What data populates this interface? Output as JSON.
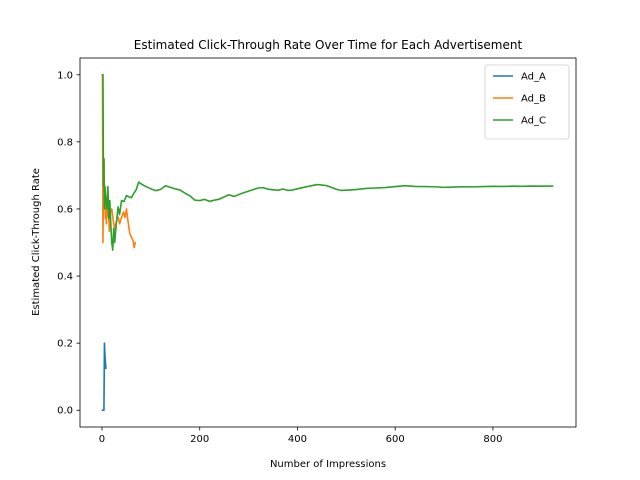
{
  "chart_data": {
    "type": "line",
    "title": "Estimated Click-Through Rate Over Time for Each Advertisement",
    "xlabel": "Number of Impressions",
    "ylabel": "Estimated Click-Through Rate",
    "xlim": [
      -45,
      970
    ],
    "ylim": [
      -0.05,
      1.05
    ],
    "xticks": [
      0,
      200,
      400,
      600,
      800
    ],
    "yticks": [
      0.0,
      0.2,
      0.4,
      0.6,
      0.8,
      1.0
    ],
    "legend_position": "top-right",
    "grid": false,
    "series": [
      {
        "name": "Ad_A",
        "color": "#1f77b4",
        "points": [
          [
            1,
            0.0
          ],
          [
            2,
            0.0
          ],
          [
            3,
            0.0
          ],
          [
            4,
            0.0
          ],
          [
            5,
            0.2
          ],
          [
            6,
            0.1667
          ],
          [
            7,
            0.1429
          ],
          [
            8,
            0.125
          ]
        ]
      },
      {
        "name": "Ad_B",
        "color": "#ff7f0e",
        "points": [
          [
            1,
            1.0
          ],
          [
            2,
            0.5
          ],
          [
            3,
            0.6667
          ],
          [
            4,
            0.75
          ],
          [
            5,
            0.6
          ],
          [
            6,
            0.6667
          ],
          [
            7,
            0.5714
          ],
          [
            8,
            0.625
          ],
          [
            9,
            0.5556
          ],
          [
            10,
            0.6
          ],
          [
            12,
            0.5833
          ],
          [
            14,
            0.5714
          ],
          [
            15,
            0.5333
          ],
          [
            17,
            0.5882
          ],
          [
            20,
            0.6
          ],
          [
            23,
            0.5652
          ],
          [
            26,
            0.5385
          ],
          [
            30,
            0.5667
          ],
          [
            33,
            0.5758
          ],
          [
            36,
            0.5556
          ],
          [
            40,
            0.575
          ],
          [
            44,
            0.5909
          ],
          [
            47,
            0.5745
          ],
          [
            50,
            0.6
          ],
          [
            53,
            0.566
          ],
          [
            57,
            0.5263
          ],
          [
            60,
            0.5167
          ],
          [
            63,
            0.5079
          ],
          [
            66,
            0.4848
          ],
          [
            68,
            0.5
          ]
        ]
      },
      {
        "name": "Ad_C",
        "color": "#2ca02c",
        "points": [
          [
            1,
            1.0
          ],
          [
            2,
            1.0
          ],
          [
            3,
            0.6667
          ],
          [
            4,
            0.75
          ],
          [
            5,
            0.6
          ],
          [
            6,
            0.6667
          ],
          [
            8,
            0.625
          ],
          [
            10,
            0.6
          ],
          [
            12,
            0.6667
          ],
          [
            14,
            0.5714
          ],
          [
            16,
            0.625
          ],
          [
            18,
            0.5556
          ],
          [
            20,
            0.5
          ],
          [
            22,
            0.4773
          ],
          [
            24,
            0.5417
          ],
          [
            26,
            0.5
          ],
          [
            28,
            0.5357
          ],
          [
            30,
            0.5667
          ],
          [
            33,
            0.6061
          ],
          [
            36,
            0.5833
          ],
          [
            40,
            0.625
          ],
          [
            45,
            0.6222
          ],
          [
            50,
            0.64
          ],
          [
            55,
            0.6364
          ],
          [
            60,
            0.6333
          ],
          [
            65,
            0.6462
          ],
          [
            70,
            0.6571
          ],
          [
            75,
            0.68
          ],
          [
            80,
            0.675
          ],
          [
            85,
            0.6706
          ],
          [
            90,
            0.6667
          ],
          [
            100,
            0.66
          ],
          [
            110,
            0.6545
          ],
          [
            120,
            0.6583
          ],
          [
            130,
            0.6692
          ],
          [
            140,
            0.6643
          ],
          [
            150,
            0.66
          ],
          [
            160,
            0.6563
          ],
          [
            170,
            0.6471
          ],
          [
            180,
            0.6389
          ],
          [
            190,
            0.6263
          ],
          [
            200,
            0.625
          ],
          [
            210,
            0.6286
          ],
          [
            220,
            0.6227
          ],
          [
            230,
            0.6261
          ],
          [
            240,
            0.6292
          ],
          [
            250,
            0.636
          ],
          [
            260,
            0.6423
          ],
          [
            270,
            0.637
          ],
          [
            280,
            0.6429
          ],
          [
            290,
            0.6483
          ],
          [
            300,
            0.6533
          ],
          [
            310,
            0.6581
          ],
          [
            320,
            0.6625
          ],
          [
            330,
            0.6636
          ],
          [
            340,
            0.6588
          ],
          [
            350,
            0.6571
          ],
          [
            360,
            0.6556
          ],
          [
            370,
            0.6595
          ],
          [
            380,
            0.6553
          ],
          [
            390,
            0.6564
          ],
          [
            400,
            0.66
          ],
          [
            410,
            0.6634
          ],
          [
            420,
            0.6667
          ],
          [
            430,
            0.6698
          ],
          [
            440,
            0.6727
          ],
          [
            450,
            0.6711
          ],
          [
            460,
            0.6696
          ],
          [
            470,
            0.6638
          ],
          [
            480,
            0.6583
          ],
          [
            490,
            0.6551
          ],
          [
            500,
            0.656
          ],
          [
            520,
            0.6577
          ],
          [
            540,
            0.6611
          ],
          [
            560,
            0.6625
          ],
          [
            580,
            0.6638
          ],
          [
            600,
            0.6667
          ],
          [
            620,
            0.6694
          ],
          [
            640,
            0.6672
          ],
          [
            660,
            0.6667
          ],
          [
            680,
            0.6662
          ],
          [
            700,
            0.6643
          ],
          [
            720,
            0.6653
          ],
          [
            740,
            0.6662
          ],
          [
            760,
            0.6658
          ],
          [
            780,
            0.6667
          ],
          [
            800,
            0.6675
          ],
          [
            820,
            0.6671
          ],
          [
            840,
            0.6679
          ],
          [
            860,
            0.6674
          ],
          [
            880,
            0.6682
          ],
          [
            900,
            0.6678
          ],
          [
            922,
            0.6681
          ]
        ]
      }
    ]
  }
}
